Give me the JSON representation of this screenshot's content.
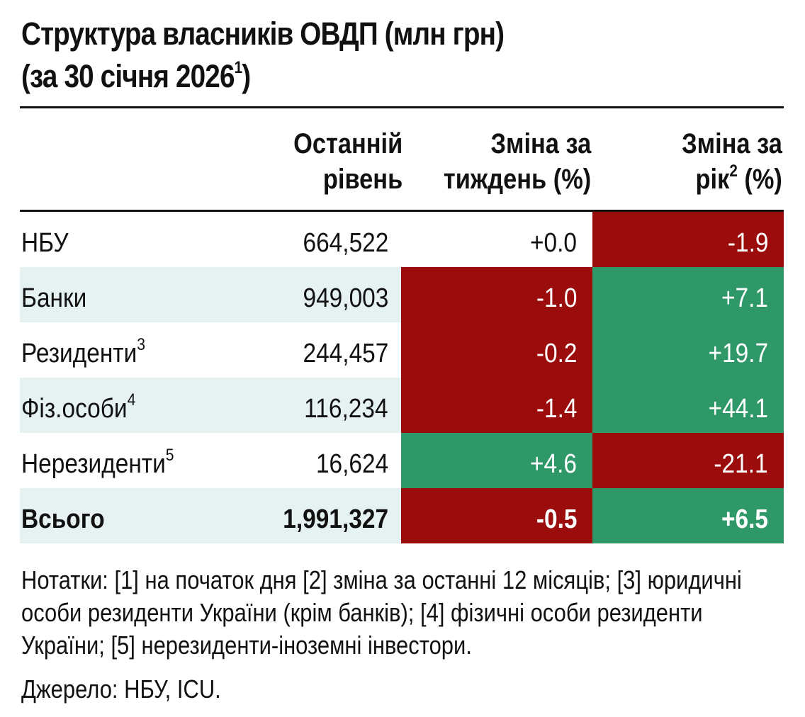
{
  "title": {
    "line1": "Структура власників ОВДП (млн грн)",
    "line2_text": "(за 30 січня 2026",
    "line2_sup": "1",
    "line2_close": ")"
  },
  "headers": {
    "level_line1": "Останній",
    "level_line2": "рівень",
    "week_line1": "Зміна за",
    "week_line2": "тиждень (%)",
    "year_line1": "Зміна за",
    "year_line2_text": "рік",
    "year_line2_sup": "2",
    "year_line2_tail": " (%)"
  },
  "rows": [
    {
      "name": "НБУ",
      "sup": "",
      "level": "664,522",
      "week": "+0.0",
      "year": "-1.9"
    },
    {
      "name": "Банки",
      "sup": "",
      "level": "949,003",
      "week": "-1.0",
      "year": "+7.1"
    },
    {
      "name": "Резиденти",
      "sup": "3",
      "level": "244,457",
      "week": "-0.2",
      "year": "+19.7"
    },
    {
      "name": "Фіз.особи",
      "sup": "4",
      "level": "116,234",
      "week": "-1.4",
      "year": "+44.1"
    },
    {
      "name": "Нерезиденти",
      "sup": "5",
      "level": "16,624",
      "week": "+4.6",
      "year": "-21.1"
    },
    {
      "name": "Всього",
      "sup": "",
      "level": "1,991,327",
      "week": "-0.5",
      "year": "+6.5"
    }
  ],
  "notes": "Нотатки: [1] на початок дня [2] зміна за останні 12 місяців; [3] юридичні особи  резиденти України (крім банків); [4] фізичні особи резиденти України; [5] нерезиденти-іноземні інвестори.",
  "source": "Джерело: НБУ, ICU.",
  "colors": {
    "negative": "#9b0c0c",
    "positive": "#2f9868",
    "shade": "#e6f2f2"
  },
  "chart_data": {
    "type": "table",
    "title": "Структура власників ОВДП (млн грн) (за 30 січня 2026)",
    "columns": [
      "",
      "Останній рівень",
      "Зміна за тиждень (%)",
      "Зміна за рік (%)"
    ],
    "categories": [
      "НБУ",
      "Банки",
      "Резиденти",
      "Фіз.особи",
      "Нерезиденти",
      "Всього"
    ],
    "series": [
      {
        "name": "Останній рівень",
        "values": [
          664522,
          949003,
          244457,
          116234,
          16624,
          1991327
        ]
      },
      {
        "name": "Зміна за тиждень (%)",
        "values": [
          0.0,
          -1.0,
          -0.2,
          -1.4,
          4.6,
          -0.5
        ]
      },
      {
        "name": "Зміна за рік (%)",
        "values": [
          -1.9,
          7.1,
          19.7,
          44.1,
          -21.1,
          6.5
        ]
      }
    ]
  }
}
